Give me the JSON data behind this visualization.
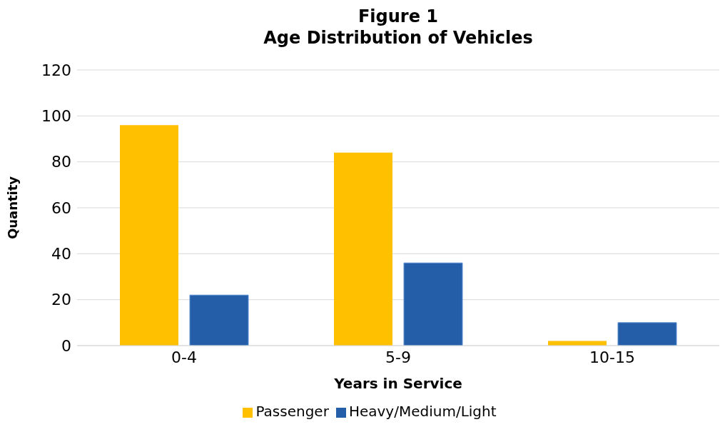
{
  "chart_data": {
    "type": "bar",
    "title": "Figure 1\nAge Distribution of Vehicles",
    "xlabel": "Years in Service",
    "ylabel": "Quantity",
    "categories": [
      "0-4",
      "5-9",
      "10-15"
    ],
    "series": [
      {
        "name": "Passenger",
        "color": "#ffc000",
        "values": [
          96,
          84,
          2
        ]
      },
      {
        "name": "Heavy/Medium/Light",
        "color": "#255ea8",
        "values": [
          22,
          36,
          10
        ]
      }
    ],
    "ylim": [
      0,
      120
    ],
    "yticks": [
      0,
      20,
      40,
      60,
      80,
      100,
      120
    ],
    "grid": "y",
    "legend": "bottom"
  }
}
